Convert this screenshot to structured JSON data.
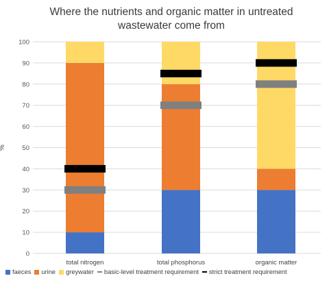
{
  "chart_data": {
    "type": "bar",
    "stacked": true,
    "title_lines": [
      "Where the nutrients and organic matter in untreated",
      "wastewater come from"
    ],
    "ylabel": "%",
    "xlabel": "",
    "ylim": [
      0,
      100
    ],
    "yticks": [
      0,
      10,
      20,
      30,
      40,
      50,
      60,
      70,
      80,
      90,
      100
    ],
    "grid": true,
    "legend_position": "bottom",
    "categories": [
      "total nitrogen",
      "total phosphorus",
      "organic matter"
    ],
    "series": [
      {
        "name": "faeces",
        "color": "#4472C4",
        "values": [
          10,
          30,
          30
        ]
      },
      {
        "name": "urine",
        "color": "#ED7D31",
        "values": [
          80,
          50,
          10
        ]
      },
      {
        "name": "greywater",
        "color": "#FFD966",
        "values": [
          10,
          20,
          60
        ]
      }
    ],
    "markers": [
      {
        "name": "basic-level treatment requirement",
        "color": "#808080",
        "values": [
          30,
          70,
          80
        ]
      },
      {
        "name": "strict treatment requirement",
        "color": "#000000",
        "values": [
          40,
          85,
          90
        ]
      }
    ]
  }
}
